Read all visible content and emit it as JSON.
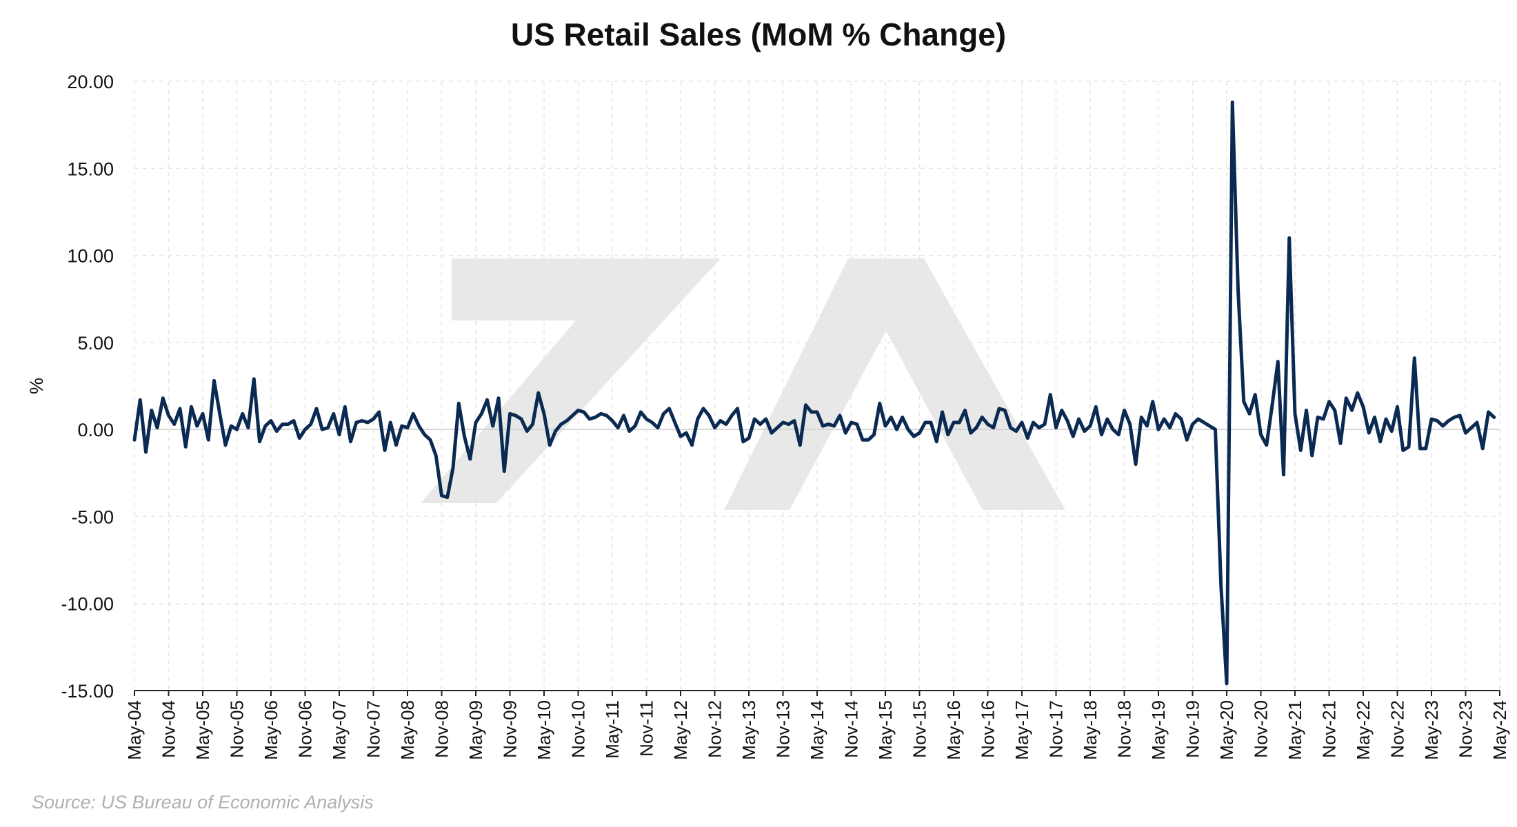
{
  "chart_data": {
    "type": "line",
    "title": "US Retail Sales (MoM % Change)",
    "ylabel": "%",
    "xlabel": "",
    "ylim": [
      -15,
      20
    ],
    "yticks": [
      20,
      15,
      10,
      5,
      0,
      -5,
      -10,
      -15
    ],
    "ytick_labels": [
      "20.00",
      "15.00",
      "10.00",
      "5.00",
      "0.00",
      "-5.00",
      "-10.00",
      "-15.00"
    ],
    "x_start": "May-04",
    "x_end": "May-24",
    "xtick_labels": [
      "May-04",
      "Nov-04",
      "May-05",
      "Nov-05",
      "May-06",
      "Nov-06",
      "May-07",
      "Nov-07",
      "May-08",
      "Nov-08",
      "May-09",
      "Nov-09",
      "May-10",
      "Nov-10",
      "May-11",
      "Nov-11",
      "May-12",
      "Nov-12",
      "May-13",
      "Nov-13",
      "May-14",
      "Nov-14",
      "May-15",
      "Nov-15",
      "May-16",
      "Nov-16",
      "May-17",
      "Nov-17",
      "May-18",
      "Nov-18",
      "May-19",
      "Nov-19",
      "May-20",
      "Nov-20",
      "May-21",
      "Nov-21",
      "May-22",
      "Nov-22",
      "May-23",
      "Nov-23",
      "May-24"
    ],
    "grid": true,
    "series": [
      {
        "color": "#0b2a52",
        "points": [
          [
            "May-04",
            -0.6
          ],
          [
            "Jun-04",
            1.7
          ],
          [
            "Jul-04",
            -1.3
          ],
          [
            "Aug-04",
            1.1
          ],
          [
            "Sep-04",
            0.1
          ],
          [
            "Oct-04",
            1.8
          ],
          [
            "Nov-04",
            0.8
          ],
          [
            "Dec-04",
            0.3
          ],
          [
            "Jan-05",
            1.2
          ],
          [
            "Feb-05",
            -1.0
          ],
          [
            "Mar-05",
            1.3
          ],
          [
            "Apr-05",
            0.2
          ],
          [
            "May-05",
            0.9
          ],
          [
            "Jun-05",
            -0.6
          ],
          [
            "Jul-05",
            2.8
          ],
          [
            "Aug-05",
            0.9
          ],
          [
            "Sep-05",
            -0.9
          ],
          [
            "Oct-05",
            0.2
          ],
          [
            "Nov-05",
            0.0
          ],
          [
            "Dec-05",
            0.9
          ],
          [
            "Jan-06",
            0.1
          ],
          [
            "Feb-06",
            2.9
          ],
          [
            "Mar-06",
            -0.7
          ],
          [
            "Apr-06",
            0.2
          ],
          [
            "May-06",
            0.5
          ],
          [
            "Jun-06",
            -0.1
          ],
          [
            "Jul-06",
            0.3
          ],
          [
            "Aug-06",
            0.3
          ],
          [
            "Sep-06",
            0.5
          ],
          [
            "Oct-06",
            -0.5
          ],
          [
            "Nov-06",
            0.0
          ],
          [
            "Dec-06",
            0.3
          ],
          [
            "Jan-07",
            1.2
          ],
          [
            "Feb-07",
            0.0
          ],
          [
            "Mar-07",
            0.1
          ],
          [
            "Apr-07",
            0.9
          ],
          [
            "May-07",
            -0.3
          ],
          [
            "Jun-07",
            1.3
          ],
          [
            "Jul-07",
            -0.7
          ],
          [
            "Aug-07",
            0.4
          ],
          [
            "Sep-07",
            0.5
          ],
          [
            "Oct-07",
            0.4
          ],
          [
            "Nov-07",
            0.6
          ],
          [
            "Dec-07",
            1.0
          ],
          [
            "Jan-08",
            -1.2
          ],
          [
            "Feb-08",
            0.4
          ],
          [
            "Mar-08",
            -0.9
          ],
          [
            "Apr-08",
            0.2
          ],
          [
            "May-08",
            0.1
          ],
          [
            "Jun-08",
            0.9
          ],
          [
            "Jul-08",
            0.2
          ],
          [
            "Aug-08",
            -0.3
          ],
          [
            "Sep-08",
            -0.6
          ],
          [
            "Oct-08",
            -1.5
          ],
          [
            "Nov-08",
            -3.8
          ],
          [
            "Dec-08",
            -3.9
          ],
          [
            "Jan-09",
            -2.2
          ],
          [
            "Feb-09",
            1.5
          ],
          [
            "Mar-09",
            -0.4
          ],
          [
            "Apr-09",
            -1.7
          ],
          [
            "May-09",
            0.4
          ],
          [
            "Jun-09",
            0.9
          ],
          [
            "Jul-09",
            1.7
          ],
          [
            "Aug-09",
            0.2
          ],
          [
            "Sep-09",
            1.8
          ],
          [
            "Oct-09",
            -2.4
          ],
          [
            "Nov-09",
            0.9
          ],
          [
            "Dec-09",
            0.8
          ],
          [
            "Jan-10",
            0.6
          ],
          [
            "Feb-10",
            -0.1
          ],
          [
            "Mar-10",
            0.3
          ],
          [
            "Apr-10",
            2.1
          ],
          [
            "May-10",
            0.9
          ],
          [
            "Jun-10",
            -0.9
          ],
          [
            "Jul-10",
            -0.1
          ],
          [
            "Aug-10",
            0.3
          ],
          [
            "Sep-10",
            0.5
          ],
          [
            "Oct-10",
            0.8
          ],
          [
            "Nov-10",
            1.1
          ],
          [
            "Dec-10",
            1.0
          ],
          [
            "Jan-11",
            0.6
          ],
          [
            "Feb-11",
            0.7
          ],
          [
            "Mar-11",
            0.9
          ],
          [
            "Apr-11",
            0.8
          ],
          [
            "May-11",
            0.5
          ],
          [
            "Jun-11",
            0.1
          ],
          [
            "Jul-11",
            0.8
          ],
          [
            "Aug-11",
            -0.1
          ],
          [
            "Sep-11",
            0.2
          ],
          [
            "Oct-11",
            1.0
          ],
          [
            "Nov-11",
            0.6
          ],
          [
            "Dec-11",
            0.4
          ],
          [
            "Jan-12",
            0.1
          ],
          [
            "Feb-12",
            0.9
          ],
          [
            "Mar-12",
            1.2
          ],
          [
            "Apr-12",
            0.4
          ],
          [
            "May-12",
            -0.4
          ],
          [
            "Jun-12",
            -0.2
          ],
          [
            "Jul-12",
            -0.9
          ],
          [
            "Aug-12",
            0.6
          ],
          [
            "Sep-12",
            1.2
          ],
          [
            "Oct-12",
            0.8
          ],
          [
            "Nov-12",
            0.1
          ],
          [
            "Dec-12",
            0.5
          ],
          [
            "Jan-13",
            0.3
          ],
          [
            "Feb-13",
            0.8
          ],
          [
            "Mar-13",
            1.2
          ],
          [
            "Apr-13",
            -0.7
          ],
          [
            "May-13",
            -0.5
          ],
          [
            "Jun-13",
            0.6
          ],
          [
            "Jul-13",
            0.3
          ],
          [
            "Aug-13",
            0.6
          ],
          [
            "Sep-13",
            -0.2
          ],
          [
            "Oct-13",
            0.1
          ],
          [
            "Nov-13",
            0.4
          ],
          [
            "Dec-13",
            0.3
          ],
          [
            "Jan-14",
            0.5
          ],
          [
            "Feb-14",
            -0.9
          ],
          [
            "Mar-14",
            1.4
          ],
          [
            "Apr-14",
            1.0
          ],
          [
            "May-14",
            1.0
          ],
          [
            "Jun-14",
            0.2
          ],
          [
            "Jul-14",
            0.3
          ],
          [
            "Aug-14",
            0.2
          ],
          [
            "Sep-14",
            0.8
          ],
          [
            "Oct-14",
            -0.2
          ],
          [
            "Nov-14",
            0.4
          ],
          [
            "Dec-14",
            0.3
          ],
          [
            "Jan-15",
            -0.6
          ],
          [
            "Feb-15",
            -0.6
          ],
          [
            "Mar-15",
            -0.3
          ],
          [
            "Apr-15",
            1.5
          ],
          [
            "May-15",
            0.2
          ],
          [
            "Jun-15",
            0.7
          ],
          [
            "Jul-15",
            0.0
          ],
          [
            "Aug-15",
            0.7
          ],
          [
            "Sep-15",
            0.0
          ],
          [
            "Oct-15",
            -0.4
          ],
          [
            "Nov-15",
            -0.2
          ],
          [
            "Dec-15",
            0.4
          ],
          [
            "Jan-16",
            0.4
          ],
          [
            "Feb-16",
            -0.7
          ],
          [
            "Mar-16",
            1.0
          ],
          [
            "Apr-16",
            -0.3
          ],
          [
            "May-16",
            0.4
          ],
          [
            "Jun-16",
            0.4
          ],
          [
            "Jul-16",
            1.1
          ],
          [
            "Aug-16",
            -0.2
          ],
          [
            "Sep-16",
            0.1
          ],
          [
            "Oct-16",
            0.7
          ],
          [
            "Nov-16",
            0.3
          ],
          [
            "Dec-16",
            0.1
          ],
          [
            "Jan-17",
            1.2
          ],
          [
            "Feb-17",
            1.1
          ],
          [
            "Mar-17",
            0.1
          ],
          [
            "Apr-17",
            -0.1
          ],
          [
            "May-17",
            0.4
          ],
          [
            "Jun-17",
            -0.5
          ],
          [
            "Jul-17",
            0.4
          ],
          [
            "Aug-17",
            0.1
          ],
          [
            "Sep-17",
            0.3
          ],
          [
            "Oct-17",
            2.0
          ],
          [
            "Nov-17",
            0.1
          ],
          [
            "Dec-17",
            1.1
          ],
          [
            "Jan-18",
            0.5
          ],
          [
            "Feb-18",
            -0.4
          ],
          [
            "Mar-18",
            0.6
          ],
          [
            "Apr-18",
            -0.1
          ],
          [
            "May-18",
            0.2
          ],
          [
            "Jun-18",
            1.3
          ],
          [
            "Jul-18",
            -0.3
          ],
          [
            "Aug-18",
            0.6
          ],
          [
            "Sep-18",
            0.0
          ],
          [
            "Oct-18",
            -0.3
          ],
          [
            "Nov-18",
            1.1
          ],
          [
            "Dec-18",
            0.3
          ],
          [
            "Jan-19",
            -2.0
          ],
          [
            "Feb-19",
            0.7
          ],
          [
            "Mar-19",
            0.2
          ],
          [
            "Apr-19",
            1.6
          ],
          [
            "May-19",
            0.0
          ],
          [
            "Jun-19",
            0.6
          ],
          [
            "Jul-19",
            0.1
          ],
          [
            "Aug-19",
            0.9
          ],
          [
            "Sep-19",
            0.6
          ],
          [
            "Oct-19",
            -0.6
          ],
          [
            "Nov-19",
            0.3
          ],
          [
            "Dec-19",
            0.6
          ],
          [
            "Jan-20",
            0.4
          ],
          [
            "Feb-20",
            0.2
          ],
          [
            "Mar-20",
            0.0
          ],
          [
            "Apr-20",
            -9.0
          ],
          [
            "May-20",
            -14.6
          ],
          [
            "Jun-20",
            18.8
          ],
          [
            "Jul-20",
            8.0
          ],
          [
            "Aug-20",
            1.6
          ],
          [
            "Sep-20",
            0.9
          ],
          [
            "Oct-20",
            2.0
          ],
          [
            "Nov-20",
            -0.3
          ],
          [
            "Dec-20",
            -0.9
          ],
          [
            "Jan-21",
            1.4
          ],
          [
            "Feb-21",
            3.9
          ],
          [
            "Mar-21",
            -2.6
          ],
          [
            "Apr-21",
            11.0
          ],
          [
            "May-21",
            0.9
          ],
          [
            "Jun-21",
            -1.2
          ],
          [
            "Jul-21",
            1.1
          ],
          [
            "Aug-21",
            -1.5
          ],
          [
            "Sep-21",
            0.7
          ],
          [
            "Oct-21",
            0.6
          ],
          [
            "Nov-21",
            1.6
          ],
          [
            "Dec-21",
            1.1
          ],
          [
            "Jan-22",
            -0.8
          ],
          [
            "Feb-22",
            1.8
          ],
          [
            "Mar-22",
            1.1
          ],
          [
            "Apr-22",
            2.1
          ],
          [
            "May-22",
            1.3
          ],
          [
            "Jun-22",
            -0.2
          ],
          [
            "Jul-22",
            0.7
          ],
          [
            "Aug-22",
            -0.7
          ],
          [
            "Sep-22",
            0.6
          ],
          [
            "Oct-22",
            -0.1
          ],
          [
            "Nov-22",
            1.3
          ],
          [
            "Dec-22",
            -1.2
          ],
          [
            "Jan-23",
            -1.0
          ],
          [
            "Feb-23",
            4.1
          ],
          [
            "Mar-23",
            -1.1
          ],
          [
            "Apr-23",
            -1.1
          ],
          [
            "May-23",
            0.6
          ],
          [
            "Jun-23",
            0.5
          ],
          [
            "Jul-23",
            0.2
          ],
          [
            "Aug-23",
            0.5
          ],
          [
            "Sep-23",
            0.7
          ],
          [
            "Oct-23",
            0.8
          ],
          [
            "Nov-23",
            -0.2
          ],
          [
            "Dec-23",
            0.1
          ],
          [
            "Jan-24",
            0.4
          ],
          [
            "Feb-24",
            -1.1
          ],
          [
            "Mar-24",
            1.0
          ],
          [
            "Apr-24",
            0.7
          ]
        ]
      }
    ]
  },
  "source": "Source: US Bureau of Economic Analysis",
  "watermark_icon": "logo-watermark-icon"
}
